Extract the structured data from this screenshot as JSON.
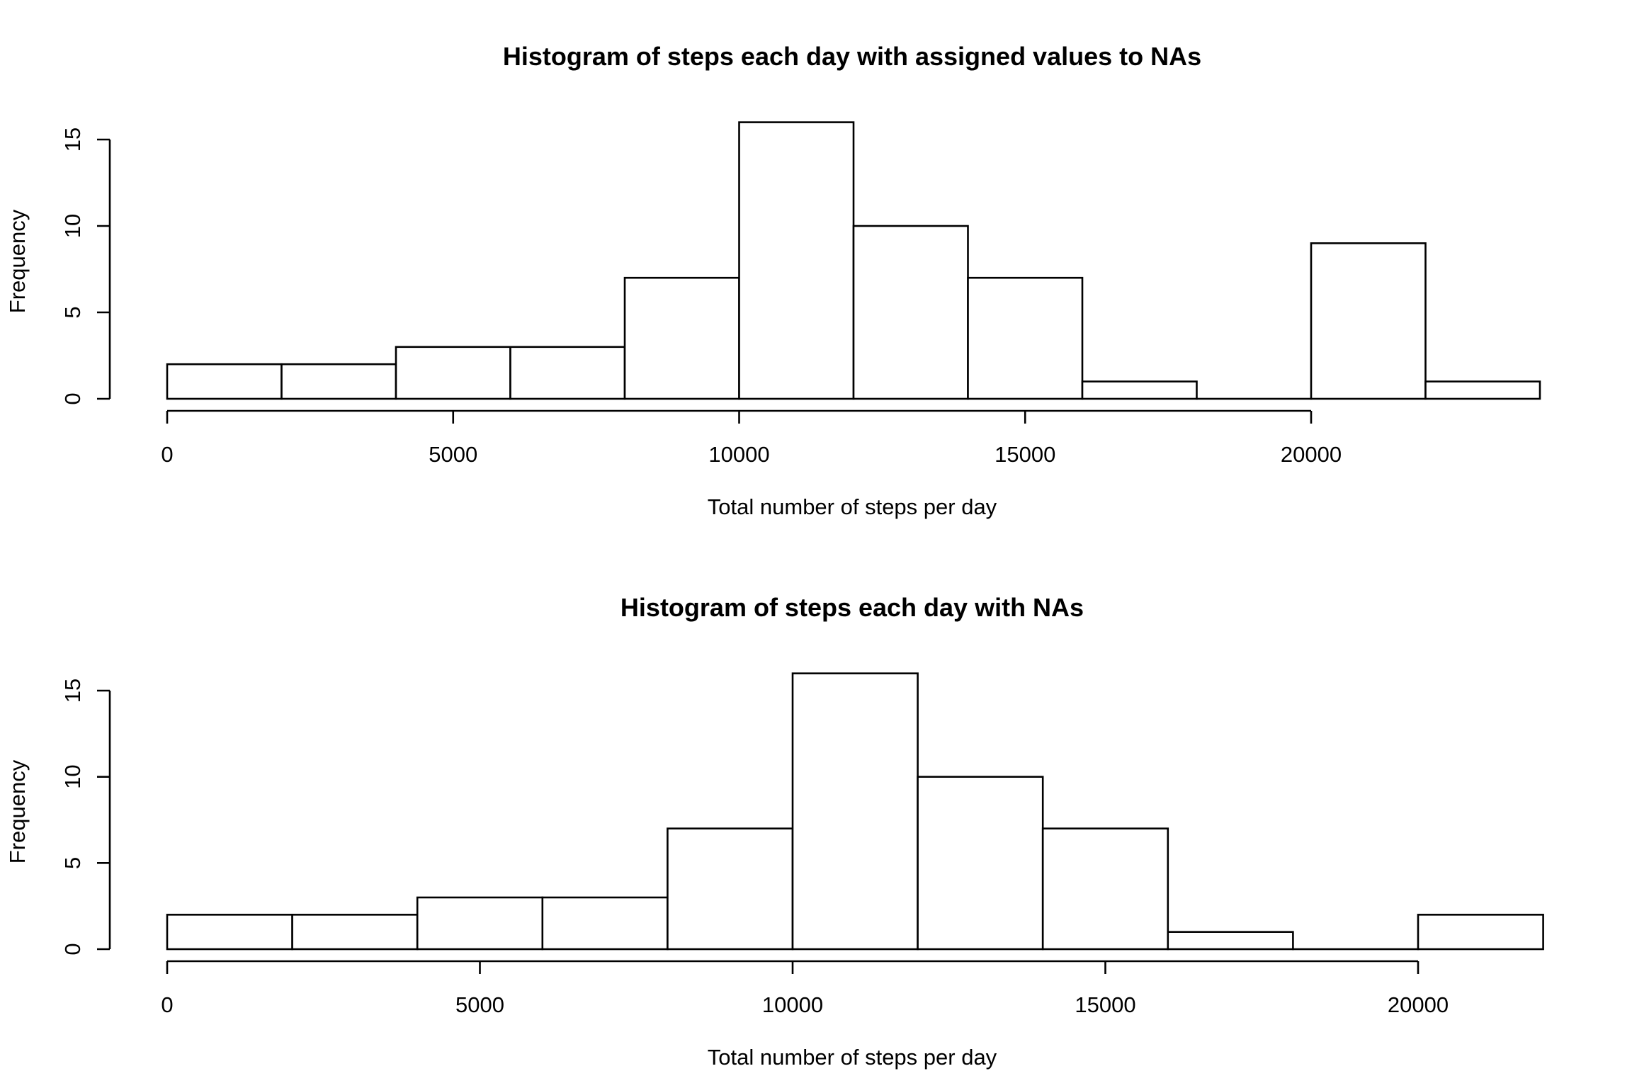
{
  "chart_data": [
    {
      "type": "bar",
      "subtype": "histogram",
      "title": "Histogram of steps each day with assigned values to NAs",
      "xlabel": "Total number of steps per day",
      "ylabel": "Frequency",
      "bin_width": 2000,
      "bin_starts": [
        0,
        2000,
        4000,
        6000,
        8000,
        10000,
        12000,
        14000,
        16000,
        18000,
        20000,
        22000
      ],
      "values": [
        2,
        2,
        3,
        3,
        7,
        16,
        10,
        7,
        1,
        0,
        9,
        1
      ],
      "xlim": [
        0,
        24000
      ],
      "ylim": [
        0,
        16
      ],
      "x_ticks": [
        0,
        5000,
        10000,
        15000,
        20000
      ],
      "x_tick_labels": [
        "0",
        "5000",
        "10000",
        "15000",
        "20000"
      ],
      "y_ticks": [
        0,
        5,
        10,
        15
      ],
      "y_tick_labels": [
        "0",
        "5",
        "10",
        "15"
      ],
      "grid": false,
      "legend": "none"
    },
    {
      "type": "bar",
      "subtype": "histogram",
      "title": "Histogram of steps each day with NAs",
      "xlabel": "Total number of steps per day",
      "ylabel": "Frequency",
      "bin_width": 2000,
      "bin_starts": [
        0,
        2000,
        4000,
        6000,
        8000,
        10000,
        12000,
        14000,
        16000,
        18000,
        20000
      ],
      "values": [
        2,
        2,
        3,
        3,
        7,
        16,
        10,
        7,
        1,
        0,
        2
      ],
      "xlim": [
        0,
        22000
      ],
      "ylim": [
        0,
        16
      ],
      "x_ticks": [
        0,
        5000,
        10000,
        15000,
        20000
      ],
      "x_tick_labels": [
        "0",
        "5000",
        "10000",
        "15000",
        "20000"
      ],
      "y_ticks": [
        0,
        5,
        10,
        15
      ],
      "y_tick_labels": [
        "0",
        "5",
        "10",
        "15"
      ],
      "grid": false,
      "legend": "none"
    }
  ]
}
